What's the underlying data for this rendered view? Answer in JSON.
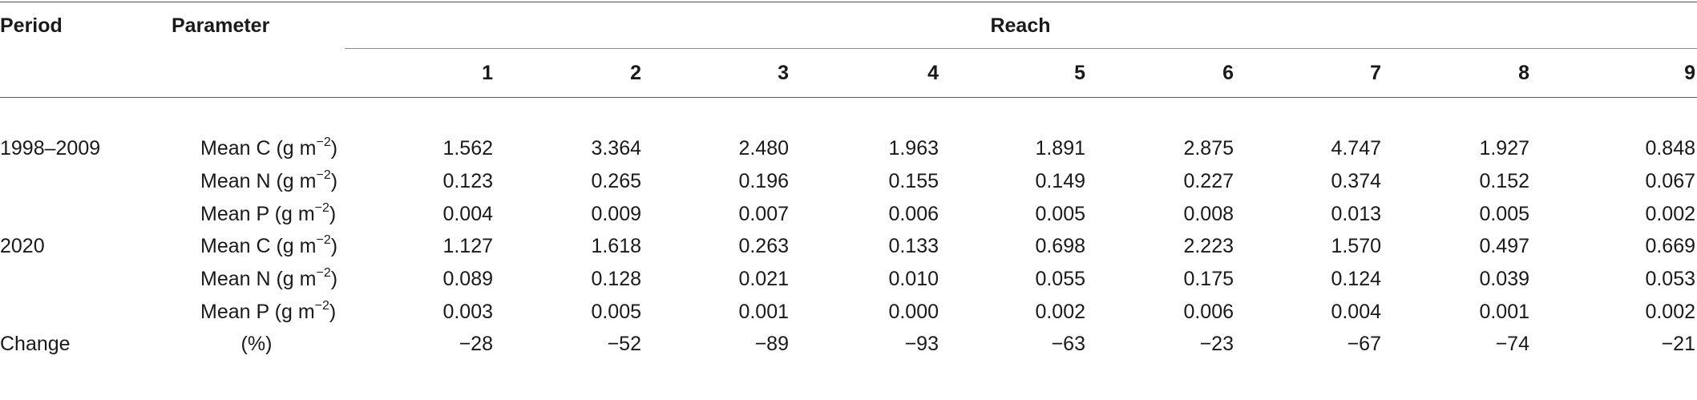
{
  "headers": {
    "period": "Period",
    "parameter": "Parameter",
    "reach": "Reach",
    "reaches": [
      "1",
      "2",
      "3",
      "4",
      "5",
      "6",
      "7",
      "8",
      "9"
    ]
  },
  "rows": [
    {
      "period": "1998–2009",
      "param": "Mean C",
      "unit": "g m",
      "exp": "−2",
      "close": ")",
      "values": [
        "1.562",
        "3.364",
        "2.480",
        "1.963",
        "1.891",
        "2.875",
        "4.747",
        "1.927",
        "0.848"
      ]
    },
    {
      "period": "",
      "param": "Mean N",
      "unit": "g m",
      "exp": "−2",
      "close": ")",
      "values": [
        "0.123",
        "0.265",
        "0.196",
        "0.155",
        "0.149",
        "0.227",
        "0.374",
        "0.152",
        "0.067"
      ]
    },
    {
      "period": "",
      "param": "Mean P",
      "unit": "g m",
      "exp": "−2",
      "close": ")",
      "values": [
        "0.004",
        "0.009",
        "0.007",
        "0.006",
        "0.005",
        "0.008",
        "0.013",
        "0.005",
        "0.002"
      ]
    },
    {
      "period": "2020",
      "param": "Mean C",
      "unit": "g m",
      "exp": "−2",
      "close": ")",
      "values": [
        "1.127",
        "1.618",
        "0.263",
        "0.133",
        "0.698",
        "2.223",
        "1.570",
        "0.497",
        "0.669"
      ]
    },
    {
      "period": "",
      "param": "Mean N",
      "unit": "g m",
      "exp": "−2",
      "close": ")",
      "values": [
        "0.089",
        "0.128",
        "0.021",
        "0.010",
        "0.055",
        "0.175",
        "0.124",
        "0.039",
        "0.053"
      ]
    },
    {
      "period": "",
      "param": "Mean P",
      "unit": "g m",
      "exp": "−2",
      "close": ")",
      "values": [
        "0.003",
        "0.005",
        "0.001",
        "0.000",
        "0.002",
        "0.006",
        "0.004",
        "0.001",
        "0.002"
      ]
    }
  ],
  "change_row": {
    "period": "Change",
    "param": "(%)",
    "values": [
      "−28",
      "−52",
      "−89",
      "−93",
      "−63",
      "−23",
      "−67",
      "−74",
      "−21"
    ]
  }
}
